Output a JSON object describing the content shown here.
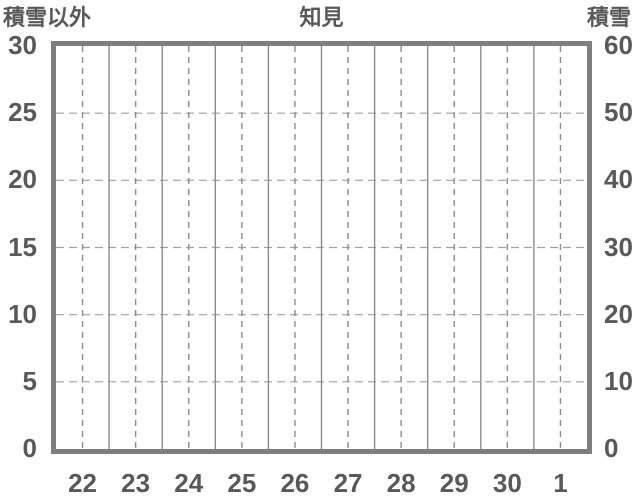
{
  "chart_data": {
    "type": "line",
    "title": "知見",
    "subtitle": "",
    "left_axis": {
      "label": "積雪以外",
      "min": 0,
      "max": 30,
      "tick_step": 5,
      "ticks_top_to_bottom": [
        "30",
        "25",
        "20",
        "15",
        "10",
        "5",
        "0"
      ]
    },
    "right_axis": {
      "label": "積雪",
      "min": 0,
      "max": 60,
      "tick_step": 10,
      "ticks_top_to_bottom": [
        "60",
        "50",
        "40",
        "30",
        "20",
        "10",
        "0"
      ]
    },
    "x_axis": {
      "categories": [
        "22",
        "23",
        "24",
        "25",
        "26",
        "27",
        "28",
        "29",
        "30",
        "1"
      ]
    },
    "series": [],
    "legend": "none",
    "grid": {
      "horizontal": "dashed lines at every y tick between min and max",
      "vertical_solid": "solid lines at category band boundaries",
      "vertical_dashed": "dashed lines at category band centers"
    }
  },
  "colors": {
    "text": "#595959",
    "plot_border": "#7f7f7f",
    "vertical_grid": "#8c8c8c",
    "horizontal_grid": "#a0a0a0",
    "background": "#ffffff"
  }
}
